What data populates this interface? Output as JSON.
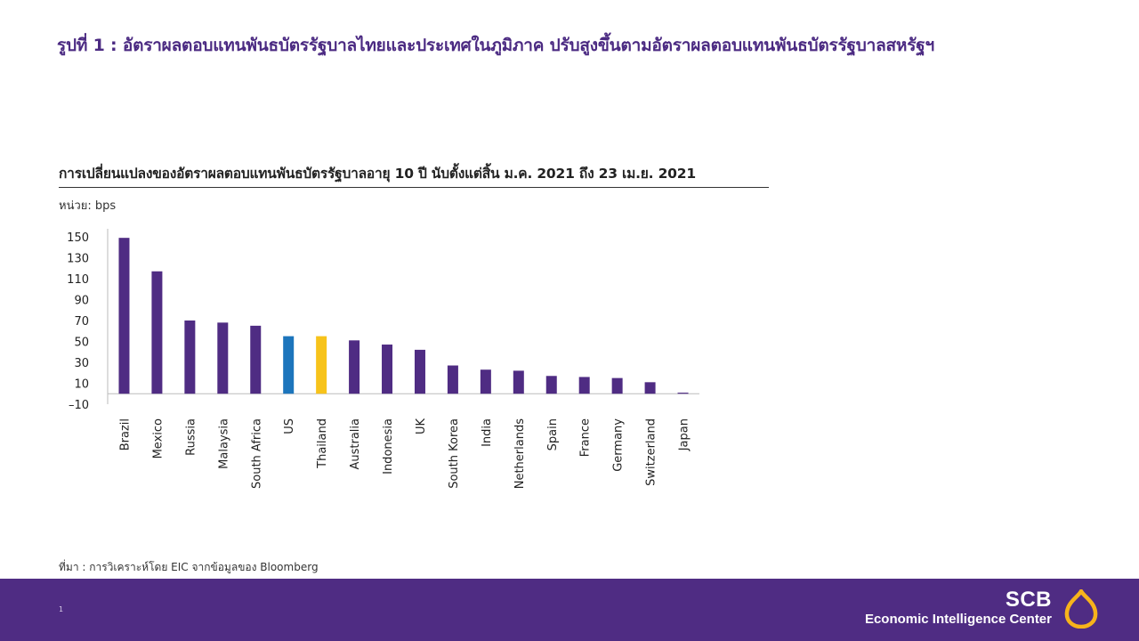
{
  "slide_title": "รูปที่ 1 : อัตราผลตอบแทนพันธบัตรรัฐบาลไทยและประเทศในภูมิภาค ปรับสูงขึ้นตามอัตราผลตอบแทนพันธบัตรรัฐบาลสหรัฐฯ",
  "chart_title": "การเปลี่ยนแปลงของอัตราผลตอบแทนพันธบัตรรัฐบาลอายุ 10 ปี นับตั้งแต่สิ้น ม.ค. 2021 ถึง 23 เม.ย. 2021",
  "unit_label": "หน่วย: bps",
  "source": "ที่มา : การวิเคราะห์โดย EIC จากข้อมูลของ  Bloomberg",
  "page_number": "1",
  "logo": {
    "scb": "SCB",
    "eic": "Economic Intelligence Center",
    "icon": "scb-logo-icon"
  },
  "colors": {
    "title": "#4B2A82",
    "bar_default": "#4F2C83",
    "bar_us": "#1C75BC",
    "bar_thailand": "#F7C31B",
    "footer": "#4F2C83"
  },
  "chart_data": {
    "type": "bar",
    "categories": [
      "Brazil",
      "Mexico",
      "Russia",
      "Malaysia",
      "South Africa",
      "US",
      "Thailand",
      "Australia",
      "Indonesia",
      "UK",
      "South Korea",
      "India",
      "Netherlands",
      "Spain",
      "France",
      "Germany",
      "Switzerland",
      "Japan"
    ],
    "values": [
      149,
      117,
      70,
      68,
      65,
      55,
      55,
      51,
      47,
      42,
      27,
      23,
      22,
      17,
      16,
      15,
      11,
      1
    ],
    "highlight": {
      "US": "#1C75BC",
      "Thailand": "#F7C31B"
    },
    "yticks": [
      "150",
      "130",
      "110",
      "90",
      "70",
      "50",
      "30",
      "10",
      "-10"
    ],
    "ylim": [
      -10,
      150
    ],
    "grid": false,
    "legend": "none"
  }
}
